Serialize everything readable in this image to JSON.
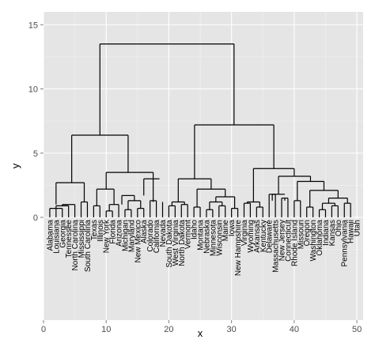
{
  "chart_data": {
    "type": "dendrogram",
    "xlabel": "x",
    "ylabel": "y",
    "xlim": [
      0,
      51
    ],
    "ylim": [
      -8,
      16
    ],
    "x_ticks": [
      "0",
      "10",
      "20",
      "30",
      "40",
      "50"
    ],
    "y_ticks": [
      "0",
      "5",
      "10",
      "15"
    ],
    "grid": true,
    "background_color": "#e5e5e5",
    "grid_color": "#ffffff",
    "line_color": "#000000",
    "leaf_labels": [
      "Alabama",
      "Louisiana",
      "Georgia",
      "Tennessee",
      "North Carolina",
      "Mississippi",
      "South Carolina",
      "Texas",
      "Illinois",
      "New York",
      "Florida",
      "Arizona",
      "Michigan",
      "Maryland",
      "New Mexico",
      "Alaska",
      "Colorado",
      "California",
      "Nevada",
      "South Dakota",
      "West Virginia",
      "North Dakota",
      "Vermont",
      "Idaho",
      "Montana",
      "Nebraska",
      "Minnesota",
      "Wisconsin",
      "Maine",
      "Iowa",
      "New Hampshire",
      "Virginia",
      "Wyoming",
      "Arkansas",
      "Kentucky",
      "Delaware",
      "Massachusetts",
      "New Jersey",
      "Connecticut",
      "Rhode Island",
      "Missouri",
      "Oregon",
      "Washington",
      "Oklahoma",
      "Indiana",
      "Kansas",
      "Ohio",
      "Pennsylvania",
      "Hawaii",
      "Utah"
    ],
    "segments": [
      [
        1,
        0.7,
        1,
        0
      ],
      [
        3,
        0.7,
        3,
        0
      ],
      [
        1,
        0.7,
        3,
        0.7
      ],
      [
        2,
        0.9,
        2,
        0
      ],
      [
        4,
        0.9,
        4,
        0
      ],
      [
        2,
        0.9,
        4,
        0.9
      ],
      [
        3,
        1.0,
        3,
        0.9
      ],
      [
        5,
        1.0,
        5,
        0
      ],
      [
        3,
        1.0,
        5,
        1.0
      ],
      [
        6,
        1.2,
        6,
        0
      ],
      [
        7,
        1.2,
        7,
        0
      ],
      [
        6,
        1.2,
        7,
        1.2
      ],
      [
        2,
        2.7,
        2,
        1.0
      ],
      [
        6.5,
        2.7,
        6.5,
        1.2
      ],
      [
        2,
        2.7,
        6.5,
        2.7
      ],
      [
        8,
        0.9,
        8,
        0
      ],
      [
        9,
        0.9,
        9,
        0
      ],
      [
        8,
        0.9,
        9,
        0.9
      ],
      [
        10,
        0.5,
        10,
        0
      ],
      [
        11,
        0.5,
        11,
        0
      ],
      [
        10,
        0.5,
        11,
        0.5
      ],
      [
        10.5,
        1.0,
        10.5,
        0.5
      ],
      [
        12,
        1.0,
        12,
        0
      ],
      [
        10.5,
        1.0,
        12,
        1.0
      ],
      [
        8.5,
        2.2,
        8.5,
        0.9
      ],
      [
        11.25,
        2.2,
        11.25,
        1.0
      ],
      [
        8.5,
        2.2,
        11.25,
        2.2
      ],
      [
        13,
        0.6,
        13,
        0
      ],
      [
        14,
        0.6,
        14,
        0
      ],
      [
        13,
        0.6,
        14,
        0.6
      ],
      [
        15,
        0.7,
        15,
        0
      ],
      [
        16,
        0.7,
        16,
        0
      ],
      [
        15,
        0.7,
        16,
        0.7
      ],
      [
        13.5,
        1.3,
        13.5,
        0.6
      ],
      [
        15.5,
        1.3,
        15.5,
        0.7
      ],
      [
        13.5,
        1.3,
        15.5,
        1.3
      ],
      [
        12.5,
        1.7,
        12.5,
        1.0
      ],
      [
        14.5,
        1.7,
        14.5,
        1.3
      ],
      [
        12.5,
        1.7,
        14.5,
        1.7
      ],
      [
        17,
        1.3,
        17,
        0
      ],
      [
        18,
        1.3,
        18,
        0
      ],
      [
        17,
        1.3,
        18,
        1.3
      ],
      [
        19,
        1.2,
        19,
        0
      ],
      [
        17.5,
        1.2,
        17.5,
        1.3
      ],
      [
        17.5,
        3.0,
        17.5,
        1.3
      ],
      [
        16,
        3.0,
        16,
        1.7
      ],
      [
        16,
        3.0,
        18.5,
        3.0
      ],
      [
        10,
        3.5,
        10,
        2.2
      ],
      [
        17.5,
        3.5,
        17.5,
        3.0
      ],
      [
        10,
        3.5,
        17.5,
        3.5
      ],
      [
        4.5,
        6.4,
        4.5,
        2.7
      ],
      [
        13.5,
        6.4,
        13.5,
        3.5
      ],
      [
        4.5,
        6.4,
        13.5,
        6.4
      ],
      [
        20,
        0.9,
        20,
        0
      ],
      [
        21,
        0.9,
        21,
        0
      ],
      [
        20,
        0.9,
        21,
        0.9
      ],
      [
        22,
        1.0,
        22,
        0
      ],
      [
        23,
        1.0,
        23,
        0
      ],
      [
        22,
        1.0,
        23,
        1.0
      ],
      [
        20.5,
        1.2,
        20.5,
        0.9
      ],
      [
        22.5,
        1.2,
        22.5,
        1.0
      ],
      [
        20.5,
        1.2,
        22.5,
        1.2
      ],
      [
        24,
        0.8,
        24,
        0
      ],
      [
        25,
        0.8,
        25,
        0
      ],
      [
        24,
        0.8,
        25,
        0.8
      ],
      [
        26,
        0.6,
        26,
        0
      ],
      [
        27,
        0.6,
        27,
        0
      ],
      [
        26,
        0.6,
        27,
        0.6
      ],
      [
        28,
        0.9,
        28,
        0
      ],
      [
        29,
        0.9,
        29,
        0
      ],
      [
        28,
        0.9,
        29,
        0.9
      ],
      [
        26.5,
        1.2,
        26.5,
        0.6
      ],
      [
        28.5,
        1.2,
        28.5,
        0.9
      ],
      [
        26.5,
        1.2,
        28.5,
        1.2
      ],
      [
        30,
        0.7,
        30,
        0
      ],
      [
        31,
        0.7,
        31,
        0
      ],
      [
        30,
        0.7,
        31,
        0.7
      ],
      [
        27.5,
        1.6,
        27.5,
        1.2
      ],
      [
        30.5,
        1.6,
        30.5,
        0.7
      ],
      [
        27.5,
        1.6,
        30.5,
        1.6
      ],
      [
        24.5,
        2.2,
        24.5,
        0.8
      ],
      [
        29,
        2.2,
        29,
        1.6
      ],
      [
        24.5,
        2.2,
        29,
        2.2
      ],
      [
        21.5,
        3.0,
        21.5,
        1.2
      ],
      [
        26.75,
        3.0,
        26.75,
        2.2
      ],
      [
        21.5,
        3.0,
        26.75,
        3.0
      ],
      [
        32,
        1.1,
        32,
        0
      ],
      [
        33,
        1.1,
        33,
        0
      ],
      [
        32,
        1.1,
        33,
        1.1
      ],
      [
        34,
        0.8,
        34,
        0
      ],
      [
        35,
        0.8,
        35,
        0
      ],
      [
        34,
        0.8,
        35,
        0.8
      ],
      [
        32.5,
        1.2,
        32.5,
        1.1
      ],
      [
        34.5,
        1.2,
        34.5,
        0.8
      ],
      [
        32.5,
        1.2,
        34.5,
        1.2
      ],
      [
        36,
        1.8,
        36,
        0
      ],
      [
        37,
        1.8,
        37,
        0
      ],
      [
        36,
        1.8,
        37,
        1.8
      ],
      [
        38,
        1.5,
        38,
        0
      ],
      [
        39,
        1.5,
        39,
        0
      ],
      [
        38,
        1.5,
        39,
        1.5
      ],
      [
        36.5,
        1.3,
        36.5,
        1.8
      ],
      [
        38.5,
        1.3,
        38.5,
        1.5
      ],
      [
        36.5,
        1.8,
        38.5,
        1.8
      ],
      [
        40,
        1.3,
        40,
        0
      ],
      [
        41,
        1.3,
        41,
        0
      ],
      [
        40,
        1.3,
        41,
        1.3
      ],
      [
        42,
        0.8,
        42,
        0
      ],
      [
        43,
        0.8,
        43,
        0
      ],
      [
        42,
        0.8,
        43,
        0.8
      ],
      [
        44,
        0.6,
        44,
        0
      ],
      [
        45,
        0.6,
        45,
        0
      ],
      [
        44,
        0.6,
        45,
        0.6
      ],
      [
        46,
        0.9,
        46,
        0
      ],
      [
        47,
        0.9,
        47,
        0
      ],
      [
        46,
        0.9,
        47,
        0.9
      ],
      [
        44.5,
        1.1,
        44.5,
        0.6
      ],
      [
        46.5,
        1.1,
        46.5,
        0.9
      ],
      [
        44.5,
        1.1,
        46.5,
        1.1
      ],
      [
        48,
        1.1,
        48,
        0
      ],
      [
        49,
        1.1,
        49,
        0
      ],
      [
        48,
        1.1,
        49,
        1.1
      ],
      [
        45.5,
        1.5,
        45.5,
        1.1
      ],
      [
        48.5,
        1.5,
        48.5,
        1.1
      ],
      [
        45.5,
        1.5,
        48.5,
        1.5
      ],
      [
        42.5,
        2.1,
        42.5,
        0.8
      ],
      [
        47,
        2.1,
        47,
        1.5
      ],
      [
        42.5,
        2.1,
        47,
        2.1
      ],
      [
        40.5,
        2.8,
        40.5,
        1.3
      ],
      [
        44.75,
        2.8,
        44.75,
        2.1
      ],
      [
        40.5,
        2.8,
        44.75,
        2.8
      ],
      [
        37.5,
        3.2,
        37.5,
        1.8
      ],
      [
        42.6,
        3.2,
        42.6,
        2.8
      ],
      [
        37.5,
        3.2,
        42.6,
        3.2
      ],
      [
        33.5,
        3.8,
        33.5,
        1.2
      ],
      [
        40,
        3.8,
        40,
        3.2
      ],
      [
        33.5,
        3.8,
        40,
        3.8
      ],
      [
        24.1,
        7.2,
        24.1,
        3.0
      ],
      [
        36.75,
        7.2,
        36.75,
        3.8
      ],
      [
        24.1,
        7.2,
        36.75,
        7.2
      ],
      [
        9,
        13.5,
        9,
        6.4
      ],
      [
        30.4,
        13.5,
        30.4,
        7.2
      ],
      [
        9,
        13.5,
        30.4,
        13.5
      ]
    ]
  }
}
